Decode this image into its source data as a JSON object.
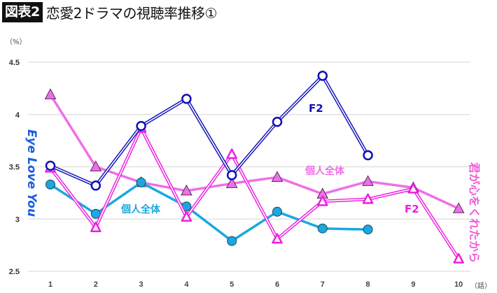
{
  "header": {
    "badge": "図表2",
    "title": "恋愛2ドラマの視聴率推移①"
  },
  "chart_data": {
    "type": "line",
    "title": "恋愛2ドラマの視聴率推移①",
    "ylabel": "（%）",
    "xlabel": "（話）",
    "ylim": [
      2.5,
      4.5
    ],
    "yticks": [
      "2.5",
      "3",
      "3.5",
      "4",
      "4.5"
    ],
    "ytick_values": [
      2.5,
      3,
      3.5,
      4,
      4.5
    ],
    "x": [
      1,
      2,
      3,
      4,
      5,
      6,
      7,
      8,
      9,
      10
    ],
    "xticks": [
      "1",
      "2",
      "3",
      "4",
      "5",
      "6",
      "7",
      "8",
      "9",
      "10"
    ],
    "grid": true,
    "series": [
      {
        "name": "Eye Love You 個人全体",
        "drama": "Eye Love You",
        "label": "個人全体",
        "color": "#1aa8df",
        "marker": "filled-circle",
        "values": [
          3.33,
          3.05,
          3.35,
          3.12,
          2.79,
          3.07,
          2.91,
          2.9,
          null,
          null
        ]
      },
      {
        "name": "Eye Love You F2",
        "drama": "Eye Love You",
        "label": "F2",
        "color": "#1010b8",
        "marker": "open-circle",
        "values": [
          3.51,
          3.32,
          3.89,
          4.15,
          3.42,
          3.93,
          4.37,
          3.61,
          null,
          null
        ]
      },
      {
        "name": "君が心をくれたから 個人全体",
        "drama": "君が心をくれたから",
        "label": "個人全体",
        "color": "#ef6fe8",
        "marker": "filled-triangle",
        "values": [
          4.19,
          3.5,
          3.35,
          3.27,
          3.34,
          3.4,
          3.24,
          3.36,
          3.3,
          3.1
        ]
      },
      {
        "name": "君が心をくれたから F2",
        "drama": "君が心をくれたから",
        "label": "F2",
        "color": "#ee1ee0",
        "marker": "open-triangle",
        "values": [
          3.49,
          2.92,
          3.87,
          3.02,
          3.62,
          2.81,
          3.17,
          3.19,
          3.29,
          2.62
        ]
      }
    ],
    "annotations": {
      "eye_love_you": "Eye Love You",
      "kimi": "君が心をくれたから",
      "elu_total": "個人全体",
      "elu_f2": "F2",
      "kimi_total": "個人全体",
      "kimi_f2": "F2"
    },
    "colors": {
      "eye_love_you_label": "#1a5ce0",
      "kimi_label": "#ee5fd6",
      "grid": "#e3e3e3"
    }
  }
}
